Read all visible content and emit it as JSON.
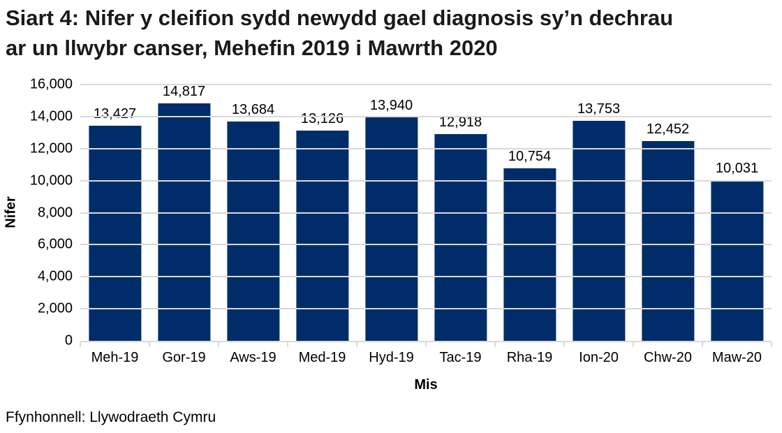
{
  "page": {
    "title_lines": [
      "Siart 4: Nifer y cleifion sydd newydd gael diagnosis sy’n dechrau",
      "ar un llwybr canser, Mehefin 2019 i Mawrth 2020"
    ],
    "source": "Ffynhonnell: Llywodraeth Cymru"
  },
  "chart_data": {
    "type": "bar",
    "title": "Siart 4: Nifer y cleifion sydd newydd gael diagnosis sy’n dechrau ar un llwybr canser, Mehefin 2019 i Mawrth 2020",
    "categories": [
      "Meh-19",
      "Gor-19",
      "Aws-19",
      "Med-19",
      "Hyd-19",
      "Tac-19",
      "Rha-19",
      "Ion-20",
      "Chw-20",
      "Maw-20"
    ],
    "values": [
      13427,
      14817,
      13684,
      13126,
      13940,
      12918,
      10754,
      13753,
      12452,
      10031
    ],
    "value_labels": [
      "13,427",
      "14,817",
      "13,684",
      "13,126",
      "13,940",
      "12,918",
      "10,754",
      "13,753",
      "12,452",
      "10,031"
    ],
    "xlabel": "Mis",
    "ylabel": "Nifer",
    "ylim": [
      0,
      16000
    ],
    "ytick_step": 2000,
    "ytick_labels": [
      "0",
      "2,000",
      "4,000",
      "6,000",
      "8,000",
      "10,000",
      "12,000",
      "14,000",
      "16,000"
    ],
    "grid": true,
    "legend": null,
    "bar_color": "#002d6a",
    "gridline_color": "#d9d9d9",
    "axisline_color": "#d9d9d9"
  }
}
